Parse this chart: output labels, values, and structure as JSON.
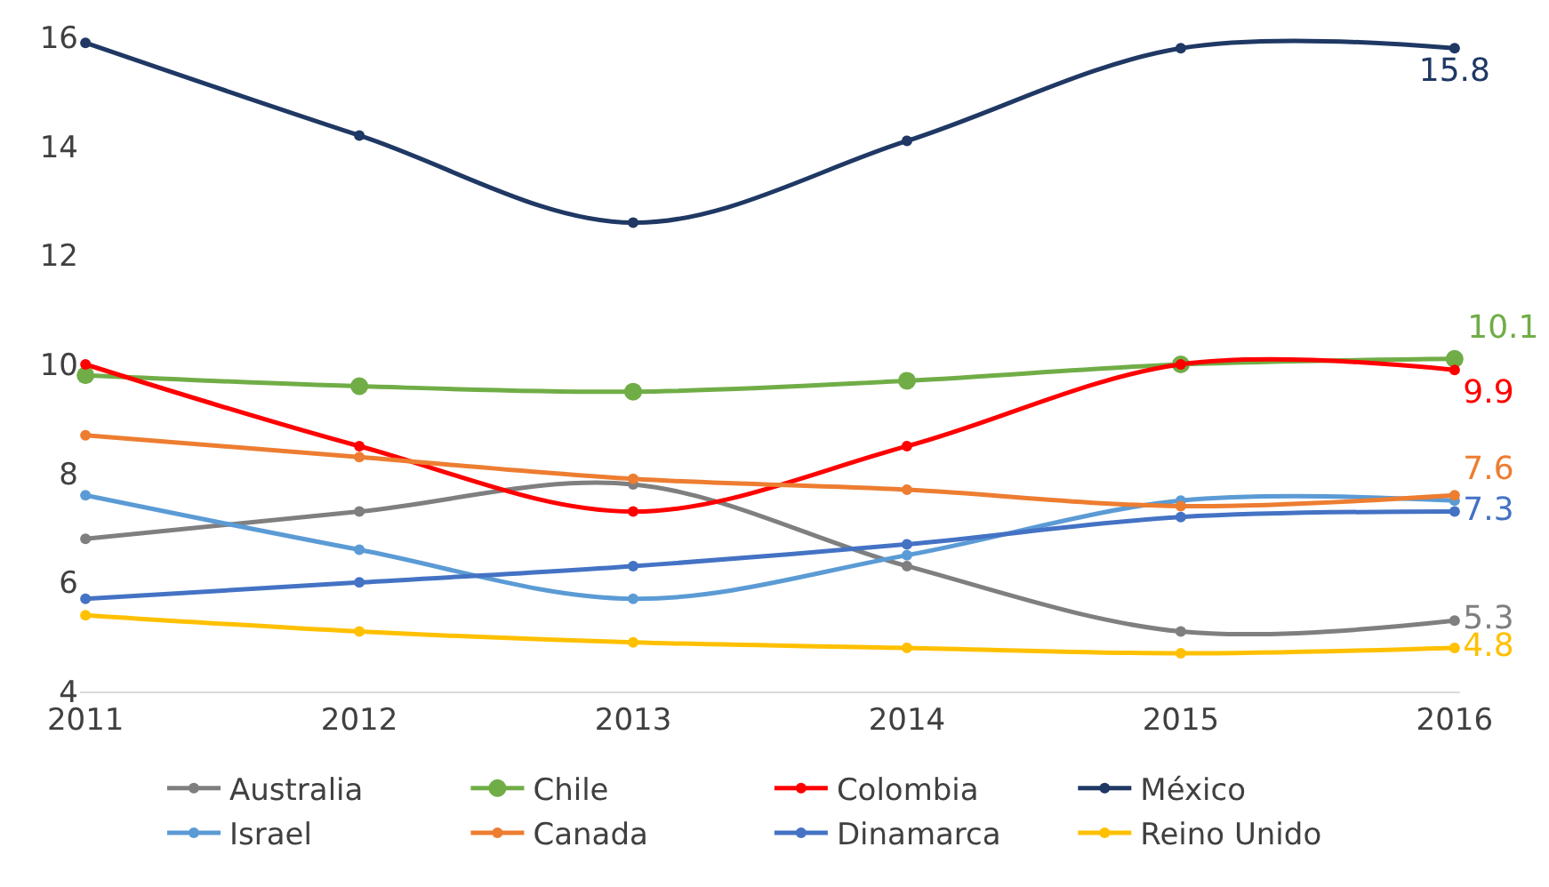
{
  "chart_data": {
    "type": "line",
    "categories": [
      "2011",
      "2012",
      "2013",
      "2014",
      "2015",
      "2016"
    ],
    "ylim": [
      4,
      16
    ],
    "yticks": [
      4,
      6,
      8,
      10,
      12,
      14,
      16
    ],
    "legend": "bottom",
    "marker": "circle",
    "line_style": "solid",
    "series": [
      {
        "name": "Australia",
        "color": "#7f7f7f",
        "values": [
          6.8,
          7.3,
          7.8,
          6.3,
          5.1,
          5.3
        ],
        "value_labels": [
          null,
          null,
          null,
          null,
          null,
          "5.3"
        ]
      },
      {
        "name": "Chile",
        "color": "#70ad47",
        "values": [
          9.8,
          9.6,
          9.5,
          9.7,
          10.0,
          10.1
        ],
        "value_labels": [
          null,
          null,
          null,
          null,
          null,
          "10.1"
        ]
      },
      {
        "name": "Colombia",
        "color": "#ff0000",
        "values": [
          10.0,
          8.5,
          7.3,
          8.5,
          10.0,
          9.9
        ],
        "value_labels": [
          null,
          null,
          null,
          null,
          null,
          "9.9"
        ]
      },
      {
        "name": "México",
        "color": "#1f3864",
        "values": [
          15.9,
          14.2,
          12.6,
          14.1,
          15.8,
          15.8
        ],
        "value_labels": [
          null,
          null,
          null,
          null,
          null,
          "15.8"
        ]
      },
      {
        "name": "Israel",
        "color": "#5b9bd5",
        "values": [
          7.6,
          6.6,
          5.7,
          6.5,
          7.5,
          7.5
        ],
        "value_labels": [
          null,
          null,
          null,
          null,
          null,
          null
        ]
      },
      {
        "name": "Canada",
        "color": "#ed7d31",
        "values": [
          8.7,
          8.3,
          7.9,
          7.7,
          7.4,
          7.6
        ],
        "value_labels": [
          null,
          null,
          null,
          null,
          null,
          "7.6"
        ]
      },
      {
        "name": "Dinamarca",
        "color": "#4472c4",
        "values": [
          5.7,
          6.0,
          6.3,
          6.7,
          7.2,
          7.3
        ],
        "value_labels": [
          null,
          null,
          null,
          null,
          null,
          "7.3"
        ]
      },
      {
        "name": "Reino Unido",
        "color": "#ffc000",
        "values": [
          5.4,
          5.1,
          4.9,
          4.8,
          4.7,
          4.8
        ],
        "value_labels": [
          null,
          null,
          null,
          null,
          null,
          "4.8"
        ]
      }
    ]
  }
}
